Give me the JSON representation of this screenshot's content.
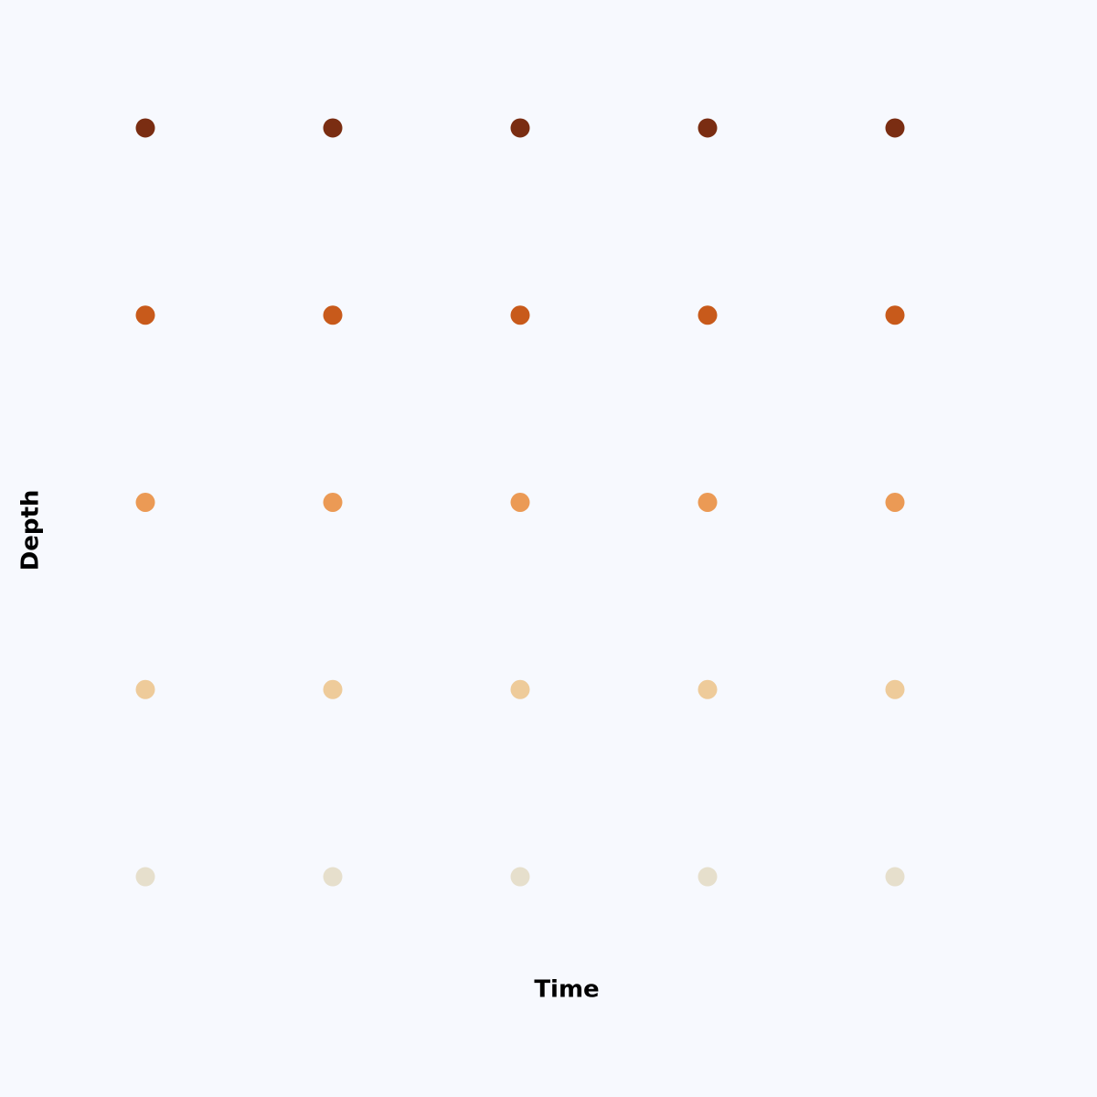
{
  "chart_data": {
    "type": "scatter",
    "x_label": "Time",
    "y_label": "Depth",
    "x": [
      0,
      1,
      2,
      3,
      4
    ],
    "xlim": [
      -0.5,
      4.5
    ],
    "ylim": [
      -0.5,
      4.5
    ],
    "series": [
      {
        "color": "#7a2d12",
        "values": [
          4,
          4,
          4,
          4,
          4
        ]
      },
      {
        "color": "#c85a1b",
        "values": [
          3,
          3,
          3,
          3,
          3
        ]
      },
      {
        "color": "#eb9a55",
        "values": [
          2,
          2,
          2,
          2,
          2
        ]
      },
      {
        "color": "#eecb9a",
        "values": [
          1,
          1,
          1,
          1,
          1
        ]
      },
      {
        "color": "#e6dfcc",
        "values": [
          0,
          0,
          0,
          0,
          0
        ]
      }
    ]
  }
}
